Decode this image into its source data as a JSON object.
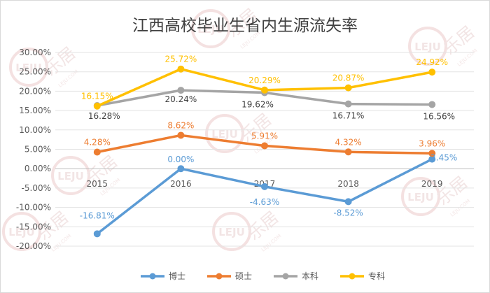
{
  "watermark": {
    "brand_cn": "乐居",
    "brand_latin": "LEJU",
    "brand_url": "LEJU.COM"
  },
  "chart_data": {
    "type": "line",
    "title": "江西高校毕业生省内生源流失率",
    "categories": [
      "2015",
      "2016",
      "2017",
      "2018",
      "2019"
    ],
    "ylim": [
      -20,
      30
    ],
    "yticks": [
      30,
      25,
      20,
      15,
      10,
      5,
      0,
      -5,
      -10,
      -15,
      -20
    ],
    "ytick_labels": [
      "30.00%",
      "25.00%",
      "20.00%",
      "15.00%",
      "10.00%",
      "5.00%",
      "0.00%",
      "-5.00%",
      "-10.00%",
      "-15.00%",
      "-20.00%"
    ],
    "grid": true,
    "legend_position": "bottom",
    "series": [
      {
        "name": "博士",
        "color": "#5b9bd5",
        "values": [
          -16.81,
          0.0,
          -4.63,
          -8.52,
          2.45
        ],
        "labels": [
          "-16.81%",
          "0.00%",
          "-4.63%",
          "-8.52%",
          "2.45%"
        ]
      },
      {
        "name": "硕士",
        "color": "#ed7d31",
        "values": [
          4.28,
          8.62,
          5.91,
          4.32,
          3.96
        ],
        "labels": [
          "4.28%",
          "8.62%",
          "5.91%",
          "4.32%",
          "3.96%"
        ]
      },
      {
        "name": "本科",
        "color": "#a5a5a5",
        "values": [
          16.28,
          20.24,
          19.62,
          16.71,
          16.56
        ],
        "labels": [
          "16.28%",
          "20.24%",
          "19.62%",
          "16.71%",
          "16.56%"
        ]
      },
      {
        "name": "专科",
        "color": "#ffc000",
        "values": [
          16.15,
          25.72,
          20.29,
          20.87,
          24.92
        ],
        "labels": [
          "16.15%",
          "25.72%",
          "20.29%",
          "20.87%",
          "24.92%"
        ]
      }
    ]
  }
}
